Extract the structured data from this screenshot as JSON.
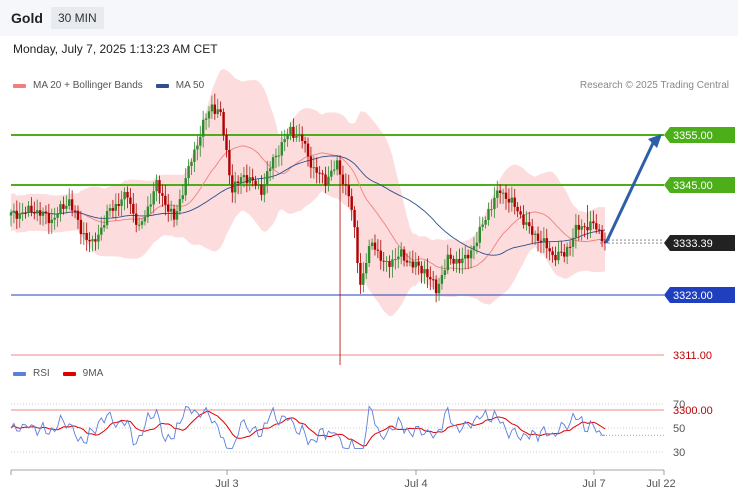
{
  "header": {
    "instrument": "Gold",
    "timeframe": "30 MIN"
  },
  "timestamp": "Monday, July 7, 2025 1:13:23 AM CET",
  "legend_main": [
    {
      "label": "MA 20 + Bollinger Bands",
      "color": "#f08080"
    },
    {
      "label": "MA 50",
      "color": "#2f4f8f"
    }
  ],
  "legend_rsi": [
    {
      "label": "RSI",
      "color": "#5b7fdb"
    },
    {
      "label": "9MA",
      "color": "#e00000"
    }
  ],
  "copyright": "Research © 2025 Trading Central",
  "colors": {
    "up": "#2e8b2e",
    "down": "#b00000",
    "resistance": "#4caf1a",
    "support": "#1f3fbf",
    "target": "#f2a0a0",
    "arrow": "#2e5ea8"
  },
  "chart_data": {
    "type": "candlestick",
    "ylim": [
      3290,
      3370
    ],
    "levels": [
      {
        "value": 3355.0,
        "label": "3355.00",
        "kind": "resistance"
      },
      {
        "value": 3345.0,
        "label": "3345.00",
        "kind": "resistance"
      },
      {
        "value": 3323.0,
        "label": "3323.00",
        "kind": "support"
      },
      {
        "value": 3311.0,
        "label": "3311.00",
        "kind": "target"
      },
      {
        "value": 3300.0,
        "label": "3300.00",
        "kind": "target"
      }
    ],
    "last_price": {
      "value": 3333.39,
      "label": "3333.39"
    },
    "projection": {
      "from": 3333.4,
      "to": 3355.0
    },
    "x_labels": [
      "Jul 3",
      "Jul 4",
      "Jul 7",
      "Jul 22"
    ],
    "rsi": {
      "ylim": [
        20,
        80
      ],
      "ticks": [
        70,
        50,
        30
      ],
      "last": 44
    }
  }
}
